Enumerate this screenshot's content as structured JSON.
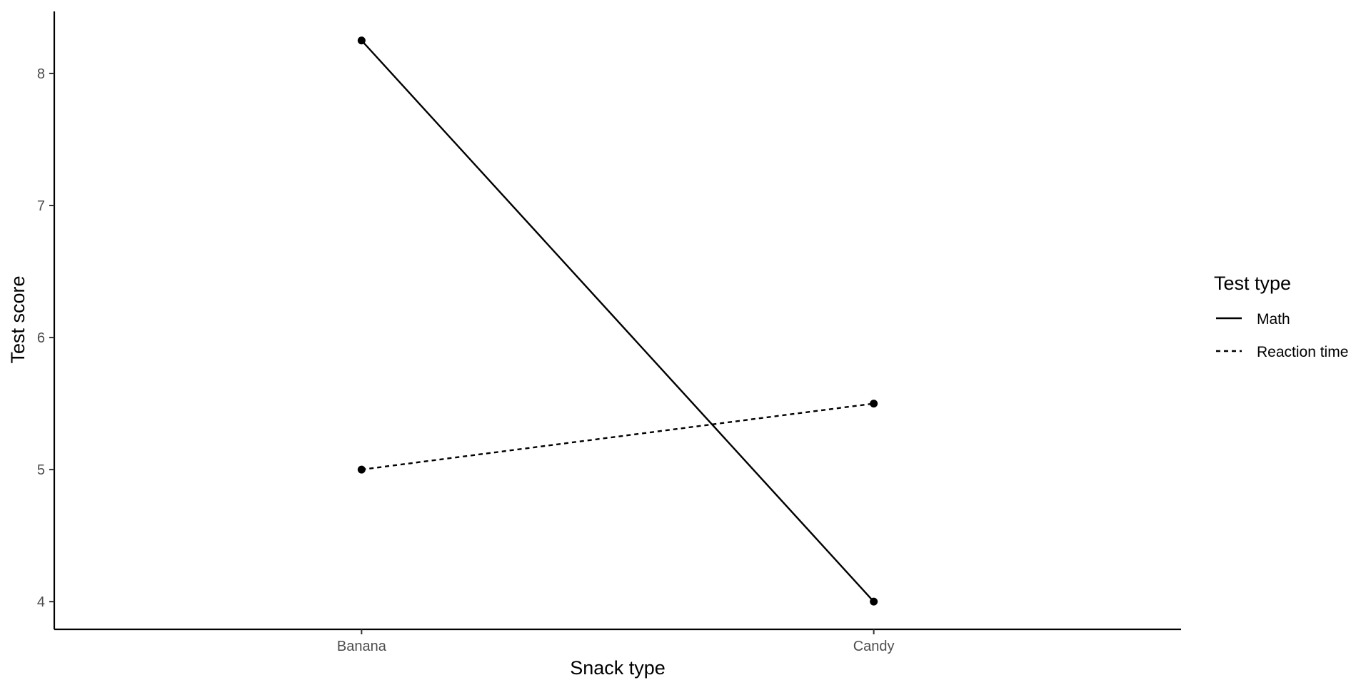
{
  "chart_data": {
    "type": "line",
    "title": "",
    "xlabel": "Snack type",
    "ylabel": "Test score",
    "categories": [
      "Banana",
      "Candy"
    ],
    "ylim": [
      3.79,
      8.47
    ],
    "yticks": [
      4,
      5,
      6,
      7,
      8
    ],
    "grid": false,
    "legend": {
      "title": "Test type",
      "placement": "right"
    },
    "series": [
      {
        "name": "Math",
        "values": [
          8.25,
          4.0
        ],
        "linetype": "solid",
        "color": "#000000"
      },
      {
        "name": "Reaction time",
        "values": [
          5.0,
          5.5
        ],
        "linetype": "dashed",
        "color": "#000000"
      }
    ]
  }
}
